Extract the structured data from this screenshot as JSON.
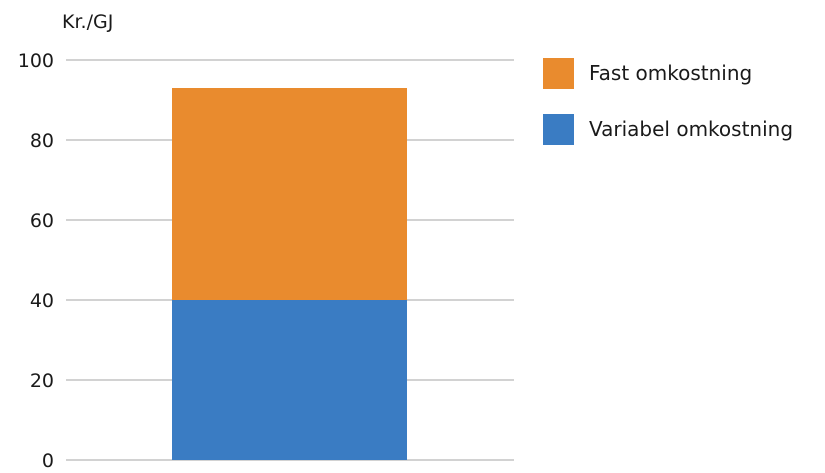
{
  "chart_data": {
    "type": "bar",
    "stacked": true,
    "categories": [
      ""
    ],
    "series": [
      {
        "name": "Variabel omkostning",
        "values": [
          40
        ],
        "color": "#3a7cc3"
      },
      {
        "name": "Fast omkostning",
        "values": [
          53
        ],
        "color": "#e98b2e"
      }
    ],
    "legend_order": [
      "Fast omkostning",
      "Variabel omkostning"
    ],
    "unit_label": "Kr./GJ",
    "title": "",
    "xlabel": "",
    "ylabel": "",
    "ylim": [
      0,
      100
    ],
    "yticks": [
      0,
      20,
      40,
      60,
      80,
      100
    ],
    "grid": true,
    "legend_position": "right"
  }
}
